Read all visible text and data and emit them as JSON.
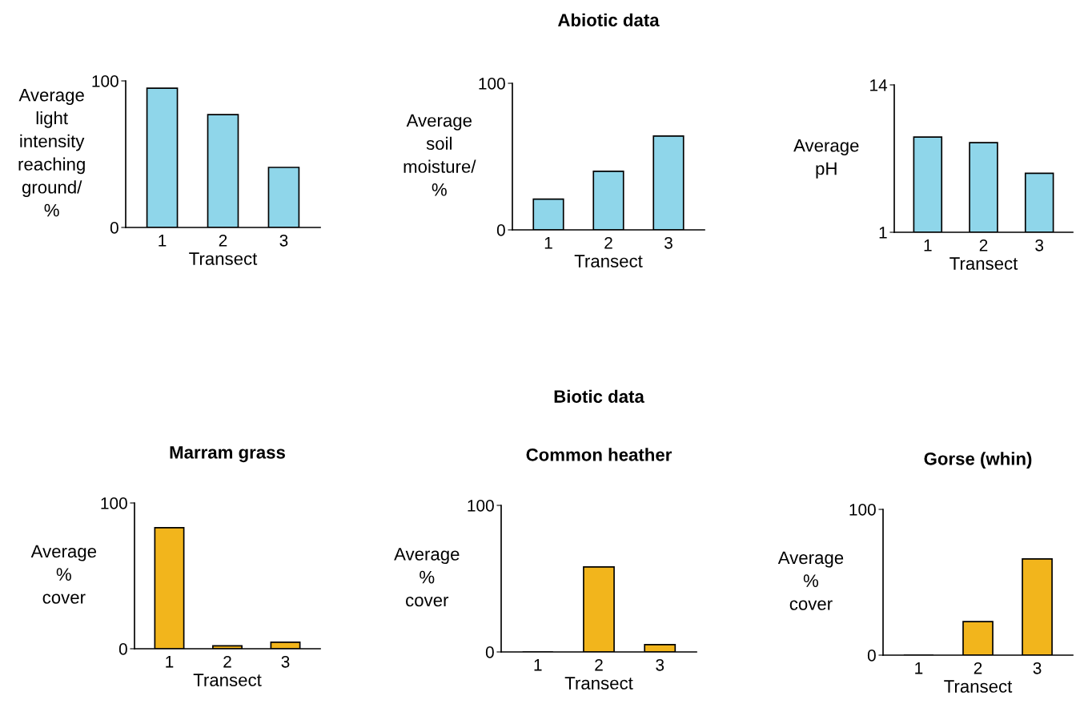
{
  "chart_data": [
    {
      "type": "bar",
      "categories": [
        "1",
        "2",
        "3"
      ],
      "values": [
        95,
        77,
        41
      ],
      "color": "#8fd6ea",
      "xlabel": "Transect",
      "ylabel": "Average\nlight\nintensity\nreaching\nground/\n%",
      "ylim": [
        0,
        100
      ],
      "yticks": [
        0,
        100
      ]
    },
    {
      "type": "bar",
      "categories": [
        "1",
        "2",
        "3"
      ],
      "values": [
        21,
        40,
        64
      ],
      "color": "#8fd6ea",
      "xlabel": "Transect",
      "ylabel": "Average\nsoil\nmoisture/\n%",
      "ylim": [
        0,
        100
      ],
      "yticks": [
        0,
        100
      ],
      "annotations": [
        "Abiotic data"
      ]
    },
    {
      "type": "bar",
      "categories": [
        "1",
        "2",
        "3"
      ],
      "values": [
        9.4,
        8.9,
        6.2
      ],
      "color": "#8fd6ea",
      "xlabel": "Transect",
      "ylabel": "Average\npH",
      "ylim": [
        1,
        14
      ],
      "yticks": [
        1,
        14
      ]
    },
    {
      "type": "bar",
      "title": "Marram grass",
      "categories": [
        "1",
        "2",
        "3"
      ],
      "values": [
        83,
        2,
        4.5
      ],
      "color": "#f2b51c",
      "xlabel": "Transect",
      "ylabel": "Average\n%\ncover",
      "ylim": [
        0,
        100
      ],
      "yticks": [
        0,
        100
      ]
    },
    {
      "type": "bar",
      "title": "Common heather",
      "categories": [
        "1",
        "2",
        "3"
      ],
      "values": [
        0,
        58,
        5
      ],
      "color": "#f2b51c",
      "xlabel": "Transect",
      "ylabel": "Average\n%\ncover",
      "ylim": [
        0,
        100
      ],
      "yticks": [
        0,
        100
      ],
      "annotations": [
        "Biotic data"
      ]
    },
    {
      "type": "bar",
      "title": "Gorse (whin)",
      "categories": [
        "1",
        "2",
        "3"
      ],
      "values": [
        0,
        23,
        66
      ],
      "color": "#f2b51c",
      "xlabel": "Transect",
      "ylabel": "Average\n%\ncover",
      "ylim": [
        0,
        100
      ],
      "yticks": [
        0,
        100
      ]
    }
  ]
}
